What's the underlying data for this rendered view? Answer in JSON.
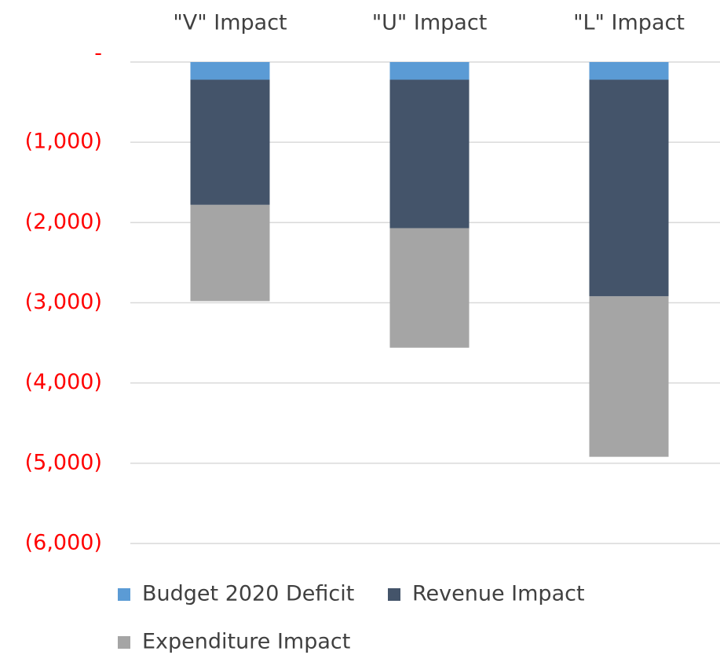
{
  "chart_data": {
    "type": "stacked_bar",
    "categories": [
      "\"V\" Impact",
      "\"U\" Impact",
      "\"L\" Impact"
    ],
    "series": [
      {
        "name": "Budget 2020 Deficit",
        "color": "#5b9bd5",
        "values": [
          -220,
          -220,
          -220
        ]
      },
      {
        "name": "Revenue Impact",
        "color": "#44546a",
        "values": [
          -1560,
          -1850,
          -2700
        ]
      },
      {
        "name": "Expenditure Impact",
        "color": "#a5a5a5",
        "values": [
          -1200,
          -1490,
          -2000
        ]
      }
    ],
    "ylim": [
      -6000,
      0
    ],
    "yticks": [
      {
        "value": 0,
        "label": "-"
      },
      {
        "value": -1000,
        "label": "(1,000)"
      },
      {
        "value": -2000,
        "label": "(2,000)"
      },
      {
        "value": -3000,
        "label": "(3,000)"
      },
      {
        "value": -4000,
        "label": "(4,000)"
      },
      {
        "value": -5000,
        "label": "(5,000)"
      },
      {
        "value": -6000,
        "label": "(6,000)"
      }
    ],
    "grid": true,
    "legend": "bottom"
  }
}
